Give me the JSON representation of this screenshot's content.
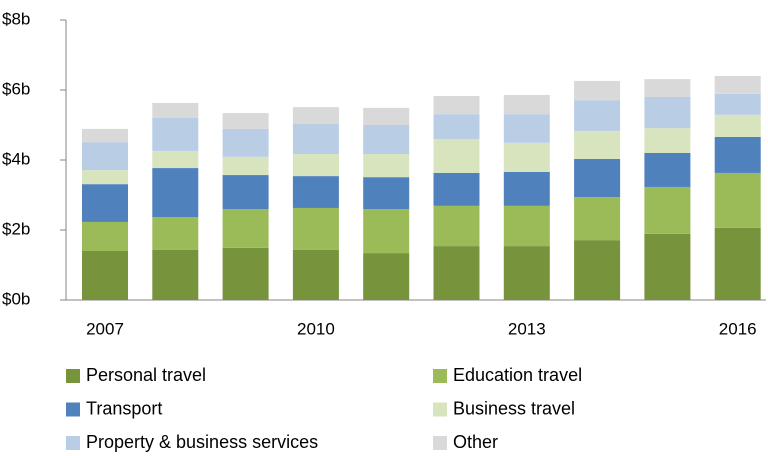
{
  "chart_data": {
    "type": "stacked-bar",
    "categories": [
      "2007",
      null,
      null,
      "2010",
      null,
      null,
      "2013",
      null,
      null,
      "2016"
    ],
    "series": [
      {
        "name": "Personal travel",
        "color": "#77933c",
        "values": [
          1.4,
          1.43,
          1.49,
          1.43,
          1.34,
          1.54,
          1.54,
          1.71,
          1.89,
          2.06
        ]
      },
      {
        "name": "Education travel",
        "color": "#9bbb59",
        "values": [
          0.83,
          0.94,
          1.11,
          1.2,
          1.26,
          1.15,
          1.15,
          1.23,
          1.34,
          1.57
        ]
      },
      {
        "name": "Transport",
        "color": "#4f81bd",
        "values": [
          1.08,
          1.4,
          0.97,
          0.91,
          0.91,
          0.94,
          0.97,
          1.09,
          0.97,
          1.03
        ]
      },
      {
        "name": "Business travel",
        "color": "#d7e4bd",
        "values": [
          0.4,
          0.49,
          0.52,
          0.63,
          0.66,
          0.97,
          0.83,
          0.8,
          0.71,
          0.63
        ]
      },
      {
        "name": "Property & business services",
        "color": "#b9cde5",
        "values": [
          0.8,
          0.94,
          0.8,
          0.86,
          0.83,
          0.71,
          0.82,
          0.88,
          0.89,
          0.6
        ]
      },
      {
        "name": "Other",
        "color": "#d9d9d9",
        "values": [
          0.38,
          0.43,
          0.45,
          0.48,
          0.49,
          0.52,
          0.55,
          0.55,
          0.51,
          0.51
        ]
      }
    ],
    "ylim": [
      0,
      8
    ],
    "yticks": [
      {
        "value": 0,
        "label": "$0b"
      },
      {
        "value": 2,
        "label": "$2b"
      },
      {
        "value": 4,
        "label": "$4b"
      },
      {
        "value": 6,
        "label": "$6b"
      },
      {
        "value": 8,
        "label": "$8b"
      }
    ],
    "legend": "bottom"
  }
}
